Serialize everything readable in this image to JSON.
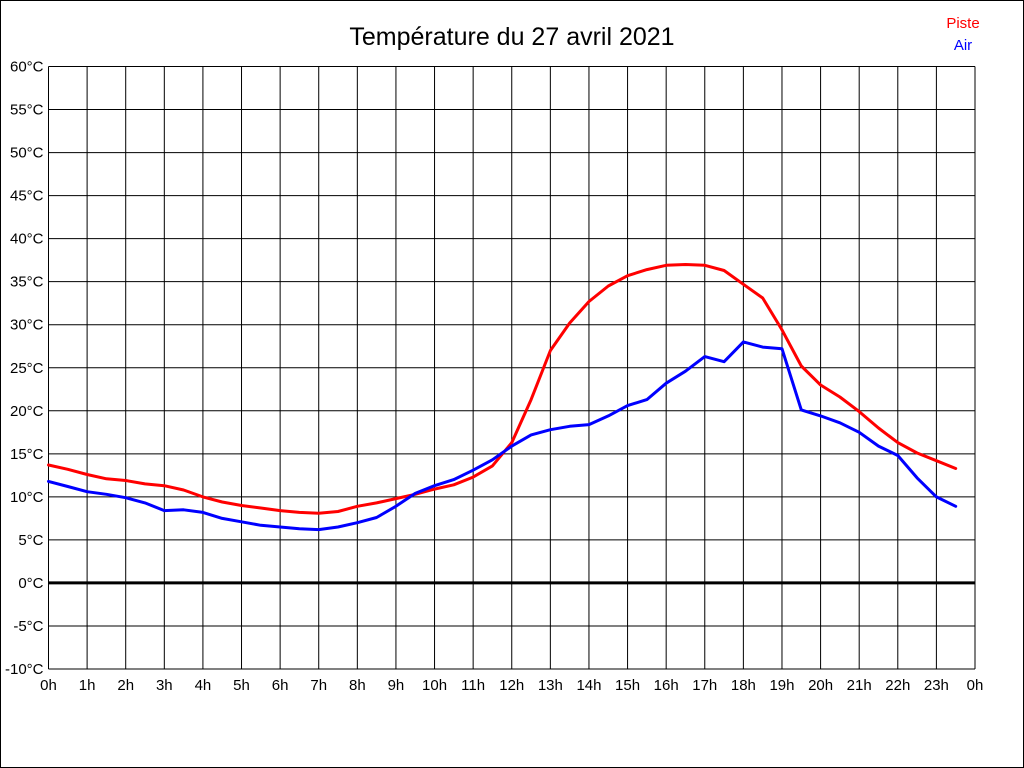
{
  "title": "Température du 27 avril 2021",
  "legend": {
    "piste": {
      "label": "Piste",
      "color": "#ff0000"
    },
    "air": {
      "label": "Air",
      "color": "#0000ff"
    }
  },
  "chart_data": {
    "type": "line",
    "title": "Température du 27 avril 2021",
    "xlabel": "",
    "ylabel": "",
    "xlim": [
      0,
      24
    ],
    "ylim": [
      -10,
      60
    ],
    "grid": true,
    "zero_line_emphasized": true,
    "legend_position": "top-right",
    "x_tick_labels": [
      "0h",
      "1h",
      "2h",
      "3h",
      "4h",
      "5h",
      "6h",
      "7h",
      "8h",
      "9h",
      "10h",
      "11h",
      "12h",
      "13h",
      "14h",
      "15h",
      "16h",
      "17h",
      "18h",
      "19h",
      "20h",
      "21h",
      "22h",
      "23h",
      "0h"
    ],
    "y_tick_labels": [
      "60°C",
      "55°C",
      "50°C",
      "45°C",
      "40°C",
      "35°C",
      "30°C",
      "25°C",
      "20°C",
      "15°C",
      "10°C",
      "5°C",
      "0°C",
      "-5°C",
      "-10°C"
    ],
    "x_hours": [
      0,
      0.5,
      1,
      1.5,
      2,
      2.5,
      3,
      3.5,
      4,
      4.5,
      5,
      5.5,
      6,
      6.5,
      7,
      7.5,
      8,
      8.5,
      9,
      9.5,
      10,
      10.5,
      11,
      11.5,
      12,
      12.5,
      13,
      13.5,
      14,
      14.5,
      15,
      15.5,
      16,
      16.5,
      17,
      17.5,
      18,
      18.5,
      19,
      19.5,
      20,
      20.5,
      21,
      21.5,
      22,
      22.5,
      23,
      23.5
    ],
    "series": [
      {
        "name": "Piste",
        "color": "#ff0000",
        "values": [
          13.7,
          13.2,
          12.6,
          12.1,
          11.9,
          11.5,
          11.3,
          10.8,
          10.0,
          9.4,
          9.0,
          8.7,
          8.4,
          8.2,
          8.1,
          8.3,
          8.9,
          9.3,
          9.8,
          10.3,
          10.9,
          11.4,
          12.3,
          13.6,
          16.3,
          21.3,
          27.0,
          30.2,
          32.7,
          34.5,
          35.7,
          36.4,
          36.9,
          37.0,
          36.9,
          36.3,
          34.7,
          33.1,
          29.4,
          25.2,
          23.0,
          21.6,
          19.9,
          18.0,
          16.3,
          15.1,
          14.2,
          13.3
        ]
      },
      {
        "name": "Air",
        "color": "#0000ff",
        "values": [
          11.8,
          11.2,
          10.6,
          10.3,
          9.9,
          9.3,
          8.4,
          8.5,
          8.2,
          7.5,
          7.1,
          6.7,
          6.5,
          6.3,
          6.2,
          6.5,
          7.0,
          7.6,
          8.9,
          10.4,
          11.3,
          12.0,
          13.1,
          14.3,
          15.9,
          17.2,
          17.8,
          18.2,
          18.4,
          19.4,
          20.6,
          21.3,
          23.2,
          24.6,
          26.3,
          25.7,
          28.0,
          27.4,
          27.2,
          20.1,
          19.4,
          18.6,
          17.5,
          15.9,
          14.8,
          12.2,
          10.0,
          8.9
        ]
      }
    ]
  }
}
